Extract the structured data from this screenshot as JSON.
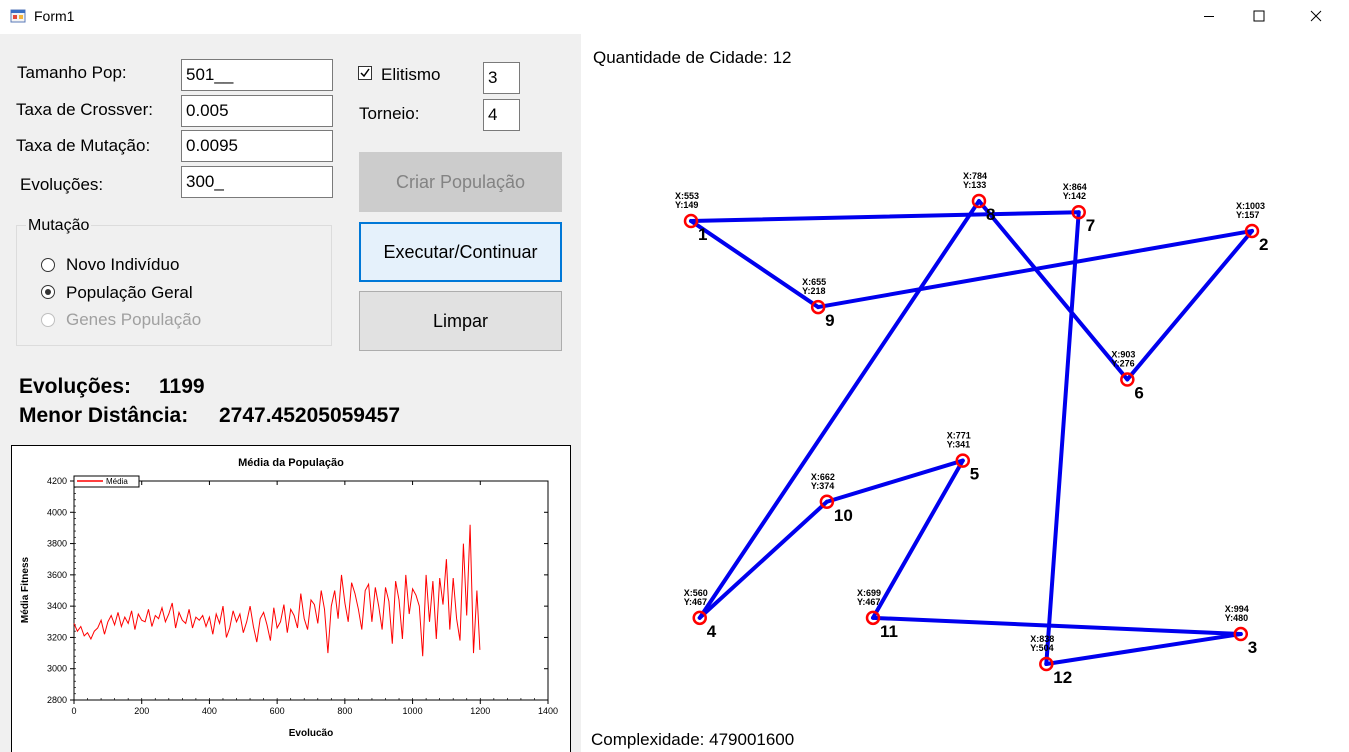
{
  "window": {
    "title": "Form1",
    "controls": [
      "minimize",
      "maximize",
      "close"
    ]
  },
  "params": {
    "tamanho_pop_label": "Tamanho Pop:",
    "tamanho_pop_value": "501__",
    "taxa_crossover_label": "Taxa de Crossver:",
    "taxa_crossover_value": "0.005",
    "taxa_mutacao_label": "Taxa de Mutação:",
    "taxa_mutacao_value": "0.0095",
    "evolucoes_label": "Evoluções:",
    "evolucoes_value": "300_",
    "elitismo_label": "Elitismo",
    "elitismo_checked": true,
    "elitismo_value": "3",
    "torneio_label": "Torneio:",
    "torneio_value": "4"
  },
  "buttons": {
    "criar": "Criar População",
    "executar": "Executar/Continuar",
    "limpar": "Limpar"
  },
  "mutacao": {
    "title": "Mutação",
    "options": [
      "Novo Indivíduo",
      "População Geral",
      "Genes População"
    ],
    "selected": "População Geral",
    "disabled": [
      "Genes População"
    ]
  },
  "results": {
    "evolucoes_label": "Evoluções:",
    "evolucoes_value": "1199",
    "menor_distancia_label": "Menor Distância:",
    "menor_distancia_value": "2747.45205059457"
  },
  "map": {
    "quantidade_label": "Quantidade de Cidade: 12",
    "complexidade_label": "Complexidade: 479001600",
    "route_color": "#0000ee",
    "city_color": "#ff0000",
    "cities": [
      {
        "id": "1",
        "x": 553,
        "y": 149
      },
      {
        "id": "2",
        "x": 1003,
        "y": 157
      },
      {
        "id": "3",
        "x": 994,
        "y": 480
      },
      {
        "id": "4",
        "x": 560,
        "y": 467
      },
      {
        "id": "5",
        "x": 771,
        "y": 341
      },
      {
        "id": "6",
        "x": 903,
        "y": 276
      },
      {
        "id": "7",
        "x": 864,
        "y": 142
      },
      {
        "id": "8",
        "x": 784,
        "y": 133
      },
      {
        "id": "9",
        "x": 655,
        "y": 218
      },
      {
        "id": "10",
        "x": 662,
        "y": 374
      },
      {
        "id": "11",
        "x": 699,
        "y": 467
      },
      {
        "id": "12",
        "x": 838,
        "y": 504
      }
    ],
    "tour": [
      "1",
      "7",
      "12",
      "3",
      "11",
      "5",
      "10",
      "4",
      "8",
      "6",
      "2",
      "9",
      "1"
    ]
  },
  "chart_data": {
    "type": "line",
    "title": "Média da População",
    "xlabel": "Evolucão",
    "ylabel": "Média Fitness",
    "legend": "Média",
    "legend_position": "top-left",
    "xlim": [
      0,
      1400
    ],
    "ylim": [
      2800,
      4200
    ],
    "xticks": [
      0,
      200,
      400,
      600,
      800,
      1000,
      1200,
      1400
    ],
    "yticks": [
      2800,
      3000,
      3200,
      3400,
      3600,
      3800,
      4000,
      4200
    ],
    "series": [
      {
        "name": "Média",
        "color": "#ff0000",
        "x": [
          0,
          10,
          20,
          30,
          40,
          50,
          60,
          70,
          80,
          90,
          100,
          110,
          120,
          130,
          140,
          150,
          160,
          170,
          180,
          190,
          200,
          210,
          220,
          230,
          240,
          250,
          260,
          270,
          280,
          290,
          300,
          310,
          320,
          330,
          340,
          350,
          360,
          370,
          380,
          390,
          400,
          410,
          420,
          430,
          440,
          450,
          460,
          470,
          480,
          490,
          500,
          510,
          520,
          530,
          540,
          550,
          560,
          570,
          580,
          590,
          600,
          610,
          620,
          630,
          640,
          650,
          660,
          670,
          680,
          690,
          700,
          710,
          720,
          730,
          740,
          750,
          760,
          770,
          780,
          790,
          800,
          810,
          820,
          830,
          840,
          850,
          860,
          870,
          880,
          890,
          900,
          910,
          920,
          930,
          940,
          950,
          960,
          970,
          980,
          990,
          1000,
          1010,
          1020,
          1030,
          1040,
          1050,
          1060,
          1070,
          1080,
          1090,
          1100,
          1110,
          1120,
          1130,
          1140,
          1150,
          1160,
          1170,
          1180,
          1190,
          1199
        ],
        "y": [
          3290,
          3240,
          3270,
          3210,
          3230,
          3190,
          3240,
          3260,
          3310,
          3220,
          3300,
          3340,
          3280,
          3360,
          3270,
          3330,
          3290,
          3370,
          3250,
          3350,
          3310,
          3300,
          3380,
          3270,
          3340,
          3320,
          3390,
          3300,
          3350,
          3420,
          3260,
          3360,
          3310,
          3290,
          3380,
          3260,
          3330,
          3310,
          3340,
          3270,
          3330,
          3220,
          3350,
          3290,
          3400,
          3200,
          3260,
          3370,
          3300,
          3350,
          3230,
          3300,
          3400,
          3270,
          3170,
          3320,
          3360,
          3280,
          3180,
          3390,
          3260,
          3300,
          3410,
          3230,
          3380,
          3340,
          3260,
          3480,
          3320,
          3250,
          3440,
          3410,
          3290,
          3500,
          3380,
          3100,
          3400,
          3500,
          3320,
          3600,
          3420,
          3300,
          3550,
          3480,
          3380,
          3250,
          3500,
          3540,
          3300,
          3520,
          3400,
          3250,
          3520,
          3430,
          3160,
          3560,
          3440,
          3190,
          3600,
          3350,
          3510,
          3470,
          3400,
          3080,
          3600,
          3300,
          3560,
          3190,
          3580,
          3410,
          3700,
          3250,
          3580,
          3320,
          3180,
          3800,
          3340,
          3920,
          3100,
          3500,
          3120
        ]
      }
    ]
  }
}
